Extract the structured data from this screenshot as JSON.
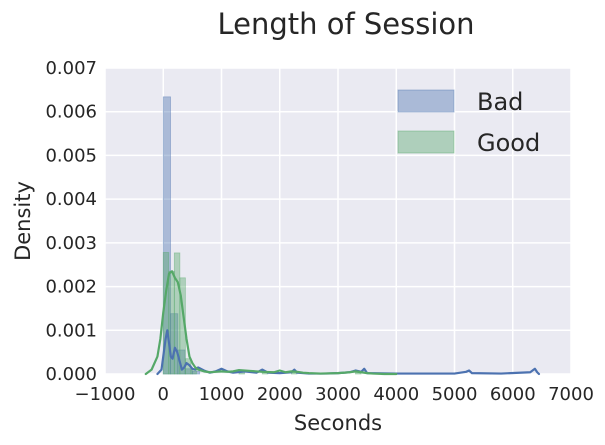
{
  "chart_data": {
    "type": "histogram+kde",
    "title": "Length of Session",
    "xlabel": "Seconds",
    "ylabel": "Density",
    "xlim": [
      -1000,
      7000
    ],
    "ylim": [
      0,
      0.007
    ],
    "xticks": [
      -1000,
      0,
      1000,
      2000,
      3000,
      4000,
      5000,
      6000,
      7000
    ],
    "yticks": [
      0,
      0.001,
      0.002,
      0.003,
      0.004,
      0.005,
      0.006,
      0.007
    ],
    "xtick_labels": [
      "−1000",
      "0",
      "1000",
      "2000",
      "3000",
      "4000",
      "5000",
      "6000",
      "7000"
    ],
    "ytick_labels": [
      "0.000",
      "0.001",
      "0.002",
      "0.003",
      "0.004",
      "0.005",
      "0.006",
      "0.007"
    ],
    "grid": true,
    "legend_position": "top-right",
    "series": [
      {
        "name": "Bad",
        "color": "#4C72B0",
        "bin_width": 125,
        "histogram": [
          {
            "x0": 0,
            "x1": 125,
            "density": 0.00634
          },
          {
            "x0": 125,
            "x1": 250,
            "density": 0.00138
          },
          {
            "x0": 250,
            "x1": 375,
            "density": 0.00055
          },
          {
            "x0": 375,
            "x1": 500,
            "density": 0.00012
          },
          {
            "x0": 500,
            "x1": 625,
            "density": 6e-05
          }
        ],
        "kde": {
          "x": [
            -100,
            -30,
            0,
            40,
            70,
            100,
            130,
            160,
            200,
            240,
            280,
            320,
            360,
            400,
            450,
            500,
            550,
            600,
            700,
            800,
            900,
            1000,
            1100,
            1200,
            1400,
            1600,
            1700,
            1800,
            2000,
            2200,
            2250,
            2300,
            2500,
            2800,
            3000,
            3200,
            3300,
            3400,
            3450,
            3500,
            4000,
            4500,
            5000,
            5200,
            5250,
            5300,
            5800,
            6300,
            6380,
            6420,
            6450
          ],
          "y": [
            0.0,
            0.0001,
            0.0004,
            0.0008,
            0.001,
            0.0007,
            0.0004,
            0.00035,
            0.0006,
            0.0005,
            0.0003,
            0.0001,
            0.00015,
            0.00025,
            0.0002,
            0.00012,
            0.0001,
            0.00015,
            8e-05,
            3e-05,
            6e-05,
            0.00012,
            6e-05,
            3e-05,
            6e-05,
            3e-05,
            0.0001,
            3e-05,
            2e-05,
            4e-05,
            0.0001,
            3e-05,
            1e-05,
            1e-05,
            2e-05,
            4e-05,
            8e-05,
            5e-05,
            0.00012,
            2e-05,
            1e-05,
            1e-05,
            1e-05,
            5e-05,
            8e-05,
            2e-05,
            1e-05,
            4e-05,
            0.00012,
            4e-05,
            0.0
          ]
        }
      },
      {
        "name": "Good",
        "color": "#55A868",
        "bin_width": 95,
        "histogram": [
          {
            "x0": 0,
            "x1": 95,
            "density": 0.00278
          },
          {
            "x0": 95,
            "x1": 190,
            "density": 0.00235
          },
          {
            "x0": 190,
            "x1": 285,
            "density": 0.00277
          },
          {
            "x0": 285,
            "x1": 380,
            "density": 0.0022
          },
          {
            "x0": 380,
            "x1": 475,
            "density": 0.00035
          },
          {
            "x0": 475,
            "x1": 570,
            "density": 0.0001
          },
          {
            "x0": 1300,
            "x1": 1395,
            "density": 5e-05
          },
          {
            "x0": 1700,
            "x1": 1795,
            "density": 4e-05
          },
          {
            "x0": 2200,
            "x1": 2295,
            "density": 3e-05
          },
          {
            "x0": 3300,
            "x1": 3395,
            "density": 4e-05
          }
        ],
        "kde": {
          "x": [
            -300,
            -200,
            -100,
            -50,
            0,
            50,
            100,
            150,
            200,
            250,
            300,
            350,
            400,
            450,
            500,
            550,
            600,
            700,
            800,
            900,
            1000,
            1100,
            1200,
            1300,
            1500,
            1700,
            1900,
            2000,
            2100,
            2200,
            2300,
            2400,
            2500,
            2700,
            3000,
            3200,
            3300,
            3400,
            3500,
            3600,
            3800,
            4000
          ],
          "y": [
            0.0,
            0.0001,
            0.0004,
            0.0008,
            0.0014,
            0.0019,
            0.0023,
            0.00235,
            0.0022,
            0.0021,
            0.0018,
            0.0013,
            0.0008,
            0.0004,
            0.00025,
            0.00015,
            0.0001,
            6e-05,
            4e-05,
            5e-05,
            6e-05,
            5e-05,
            6e-05,
            9e-05,
            7e-05,
            5e-05,
            4e-05,
            8e-05,
            4e-05,
            6e-05,
            5e-05,
            3e-05,
            2e-05,
            1e-05,
            2e-05,
            4e-05,
            6e-05,
            4e-05,
            2e-05,
            1e-05,
            0.0,
            0.0
          ]
        }
      }
    ]
  }
}
